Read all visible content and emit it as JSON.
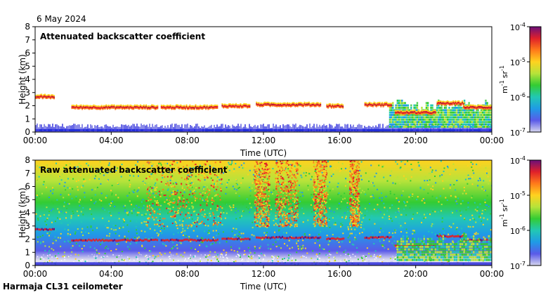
{
  "date": "6 May 2024",
  "instrument": "Harmaja CL31 ceilometer",
  "colorscale": {
    "stops": [
      "#d6d6ee",
      "#5a5ae8",
      "#1f9be6",
      "#22c8b4",
      "#33cc33",
      "#b6e33a",
      "#ffd21f",
      "#ff7a1a",
      "#e0202a",
      "#6b0f7a"
    ],
    "ticks": [
      {
        "base": "10",
        "exp": "-4",
        "value": 0.0001
      },
      {
        "base": "10",
        "exp": "-5",
        "value": 1e-05
      },
      {
        "base": "10",
        "exp": "-6",
        "value": 1e-06
      },
      {
        "base": "10",
        "exp": "-7",
        "value": 1e-07
      }
    ],
    "unit_base_1": "m",
    "unit_exp_1": "-1",
    "unit_base_2": "sr",
    "unit_exp_2": "-1"
  },
  "chart_data": [
    {
      "type": "heatmap",
      "title": "Attenuated backscatter coefficient",
      "xlabel": "Time (UTC)",
      "ylabel": "Height (km)",
      "xticks": [
        "00:00",
        "04:00",
        "08:00",
        "12:00",
        "16:00",
        "20:00",
        "00:00"
      ],
      "xlim_hours": [
        0,
        24
      ],
      "yticks": [
        "0",
        "1",
        "2",
        "3",
        "4",
        "5",
        "6",
        "7",
        "8"
      ],
      "ylim_km": [
        0,
        8
      ],
      "zscale": "log",
      "zlim": [
        1e-07,
        0.0001
      ],
      "cloud_layers": [
        {
          "start_hour": 0.0,
          "end_hour": 1.0,
          "height_km": 2.8
        },
        {
          "start_hour": 1.9,
          "end_hour": 6.4,
          "height_km": 2.0
        },
        {
          "start_hour": 6.6,
          "end_hour": 9.6,
          "height_km": 2.0
        },
        {
          "start_hour": 9.8,
          "end_hour": 11.3,
          "height_km": 2.1
        },
        {
          "start_hour": 11.6,
          "end_hour": 15.0,
          "height_km": 2.2
        },
        {
          "start_hour": 15.3,
          "end_hour": 16.2,
          "height_km": 2.1
        },
        {
          "start_hour": 17.3,
          "end_hour": 18.7,
          "height_km": 2.2
        },
        {
          "start_hour": 18.9,
          "end_hour": 21.0,
          "height_km": 1.6
        },
        {
          "start_hour": 21.1,
          "end_hour": 22.5,
          "height_km": 2.3
        },
        {
          "start_hour": 22.5,
          "end_hour": 24.0,
          "height_km": 2.0
        }
      ],
      "precipitation": {
        "start_hour": 18.6,
        "end_hour": 24.0,
        "top_km": 2.4
      }
    },
    {
      "type": "heatmap",
      "title": "Raw attenuated backscatter coefficient",
      "xlabel": "Time (UTC)",
      "ylabel": "Height (km)",
      "xticks": [
        "00:00",
        "04:00",
        "08:00",
        "12:00",
        "16:00",
        "20:00",
        "00:00"
      ],
      "xlim_hours": [
        0,
        24
      ],
      "yticks": [
        "0",
        "1",
        "2",
        "3",
        "4",
        "5",
        "6",
        "7",
        "8"
      ],
      "ylim_km": [
        0,
        8
      ],
      "zscale": "log",
      "zlim": [
        1e-07,
        0.0001
      ]
    }
  ]
}
